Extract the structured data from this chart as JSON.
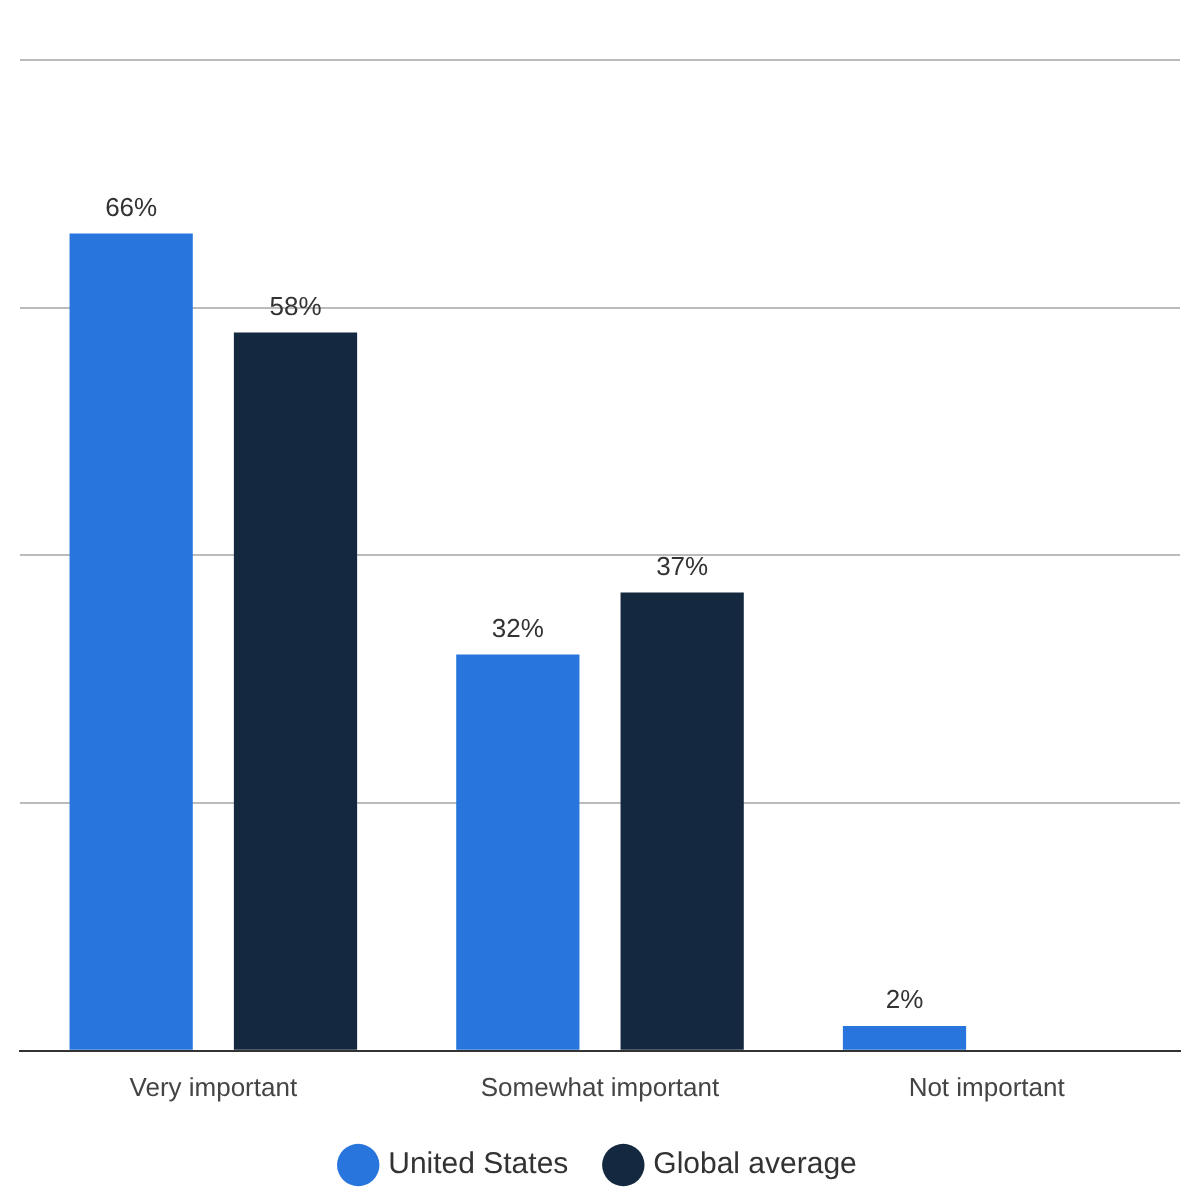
{
  "chart_data": {
    "type": "bar",
    "categories": [
      "Very important",
      "Somewhat important",
      "Not important"
    ],
    "series": [
      {
        "name": "United States",
        "color": "#2876dd",
        "values": [
          66,
          32,
          2
        ],
        "value_labels": [
          "66%",
          "32%",
          "2%"
        ]
      },
      {
        "name": "Global average",
        "color": "#14293f",
        "values": [
          58,
          37,
          null
        ],
        "value_labels": [
          "58%",
          "37%",
          null
        ]
      }
    ],
    "ylim": [
      0,
      80
    ],
    "yticks": [
      {
        "value": 0,
        "label": null
      },
      {
        "value": 20,
        "label": null
      },
      {
        "value": 40,
        "label": null
      },
      {
        "value": 60,
        "label": null
      },
      {
        "value": 80,
        "label": null
      }
    ],
    "tick_labels": "x",
    "grid": "y",
    "legend": "bottom"
  }
}
